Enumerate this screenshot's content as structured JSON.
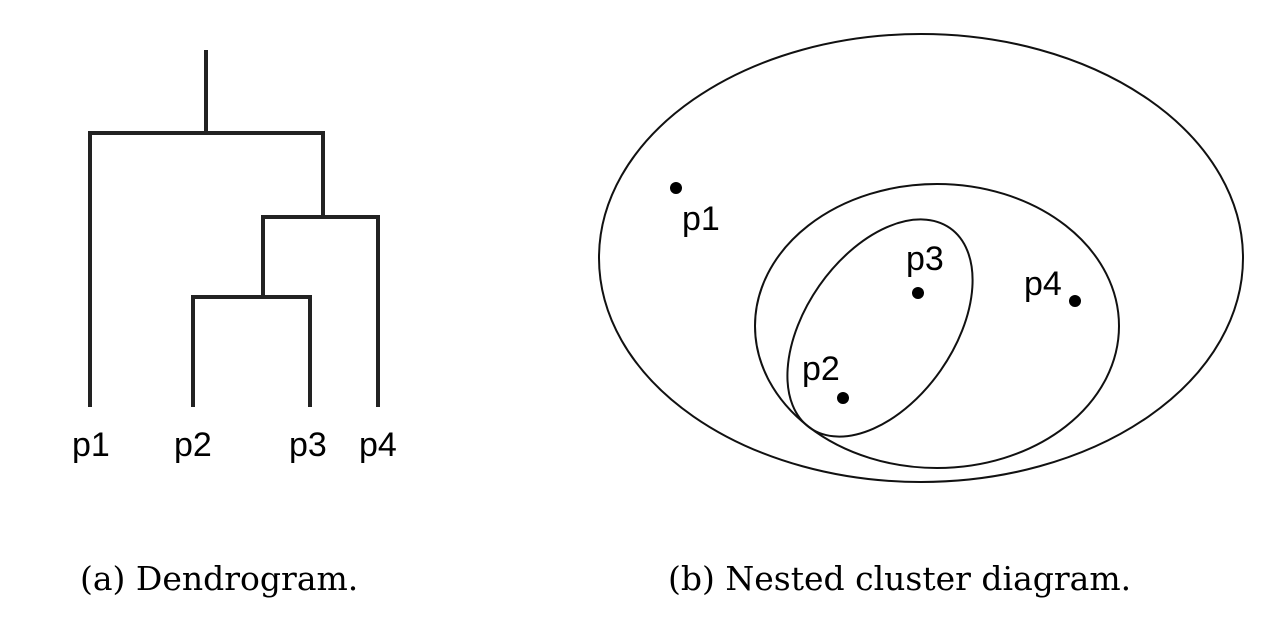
{
  "dendrogram": {
    "leaves": [
      "p1",
      "p2",
      "p3",
      "p4"
    ],
    "caption": "(a) Dendrogram."
  },
  "nested": {
    "points": [
      {
        "label": "p1"
      },
      {
        "label": "p2"
      },
      {
        "label": "p3"
      },
      {
        "label": "p4"
      }
    ],
    "clusters": [
      [
        "p2",
        "p3"
      ],
      [
        "p2",
        "p3",
        "p4"
      ],
      [
        "p1",
        "p2",
        "p3",
        "p4"
      ]
    ],
    "caption": "(b) Nested cluster diagram."
  }
}
